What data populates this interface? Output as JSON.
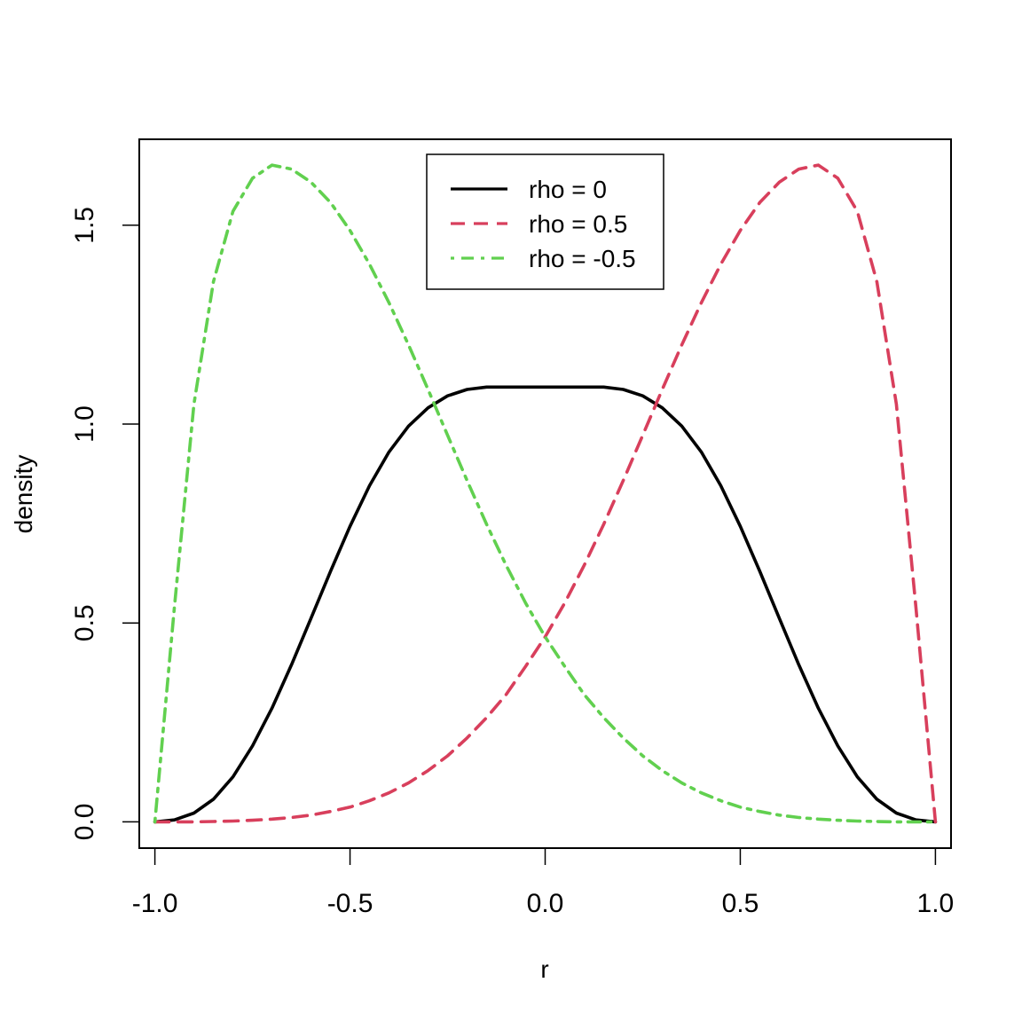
{
  "chart_data": {
    "type": "line",
    "title": "",
    "xlabel": "r",
    "ylabel": "density",
    "xlim": [
      -1.04,
      1.04
    ],
    "ylim": [
      -0.066,
      1.716
    ],
    "x_ticks": [
      -1.0,
      -0.5,
      0.0,
      0.5,
      1.0
    ],
    "x_tick_labels": [
      "-1.0",
      "-0.5",
      "0.0",
      "0.5",
      "1.0"
    ],
    "y_ticks": [
      0.0,
      0.5,
      1.0,
      1.5
    ],
    "y_tick_labels": [
      "0.0",
      "0.5",
      "1.0",
      "1.5"
    ],
    "grid": false,
    "legend_position": "top-center",
    "series": [
      {
        "name": "rho = 0",
        "color": "#000000",
        "dash": "solid",
        "x": [
          -1.0,
          -0.95,
          -0.9,
          -0.85,
          -0.8,
          -0.75,
          -0.7,
          -0.65,
          -0.6,
          -0.55,
          -0.5,
          -0.45,
          -0.4,
          -0.35,
          -0.3,
          -0.25,
          -0.2,
          -0.15,
          -0.1,
          -0.05,
          0.0,
          0.05,
          0.1,
          0.15,
          0.2,
          0.25,
          0.3,
          0.35,
          0.4,
          0.45,
          0.5,
          0.55,
          0.6,
          0.65,
          0.7,
          0.75,
          0.8,
          0.85,
          0.9,
          0.95,
          1.0
        ],
        "y": [
          0.0,
          0.005,
          0.022,
          0.057,
          0.113,
          0.191,
          0.286,
          0.395,
          0.512,
          0.63,
          0.743,
          0.845,
          0.93,
          0.995,
          1.041,
          1.071,
          1.087,
          1.093,
          1.093,
          1.093,
          1.093,
          1.093,
          1.093,
          1.093,
          1.087,
          1.071,
          1.041,
          0.995,
          0.93,
          0.845,
          0.743,
          0.63,
          0.512,
          0.395,
          0.286,
          0.191,
          0.113,
          0.057,
          0.022,
          0.005,
          0.0
        ]
      },
      {
        "name": "rho = 0.5",
        "color": "#D83F5C",
        "dash": "dashed",
        "x": [
          -1.0,
          -0.95,
          -0.9,
          -0.85,
          -0.8,
          -0.75,
          -0.7,
          -0.65,
          -0.6,
          -0.55,
          -0.5,
          -0.45,
          -0.4,
          -0.35,
          -0.3,
          -0.25,
          -0.2,
          -0.15,
          -0.1,
          -0.05,
          0.0,
          0.05,
          0.1,
          0.15,
          0.2,
          0.25,
          0.3,
          0.35,
          0.4,
          0.45,
          0.5,
          0.55,
          0.6,
          0.65,
          0.7,
          0.75,
          0.8,
          0.85,
          0.9,
          0.95,
          1.0
        ],
        "y": [
          0.0,
          0.0,
          0.0,
          0.001,
          0.002,
          0.004,
          0.007,
          0.011,
          0.017,
          0.026,
          0.037,
          0.053,
          0.073,
          0.098,
          0.129,
          0.166,
          0.211,
          0.262,
          0.32,
          0.391,
          0.465,
          0.55,
          0.645,
          0.748,
          0.858,
          0.972,
          1.087,
          1.199,
          1.305,
          1.402,
          1.487,
          1.557,
          1.608,
          1.641,
          1.651,
          1.618,
          1.535,
          1.358,
          1.05,
          0.54,
          0.0
        ]
      },
      {
        "name": "rho = -0.5",
        "color": "#61D04F",
        "dash": "dotdash",
        "x": [
          -1.0,
          -0.95,
          -0.9,
          -0.85,
          -0.8,
          -0.75,
          -0.7,
          -0.65,
          -0.6,
          -0.55,
          -0.5,
          -0.45,
          -0.4,
          -0.35,
          -0.3,
          -0.25,
          -0.2,
          -0.15,
          -0.1,
          -0.05,
          0.0,
          0.05,
          0.1,
          0.15,
          0.2,
          0.25,
          0.3,
          0.35,
          0.4,
          0.45,
          0.5,
          0.55,
          0.6,
          0.65,
          0.7,
          0.75,
          0.8,
          0.85,
          0.9,
          0.95,
          1.0
        ],
        "y": [
          0.0,
          0.54,
          1.05,
          1.358,
          1.535,
          1.618,
          1.651,
          1.641,
          1.608,
          1.557,
          1.487,
          1.402,
          1.305,
          1.199,
          1.087,
          0.972,
          0.858,
          0.748,
          0.645,
          0.55,
          0.465,
          0.391,
          0.32,
          0.262,
          0.211,
          0.166,
          0.129,
          0.098,
          0.073,
          0.053,
          0.037,
          0.026,
          0.017,
          0.011,
          0.007,
          0.004,
          0.002,
          0.001,
          0.0,
          0.0,
          0.0
        ]
      }
    ]
  }
}
